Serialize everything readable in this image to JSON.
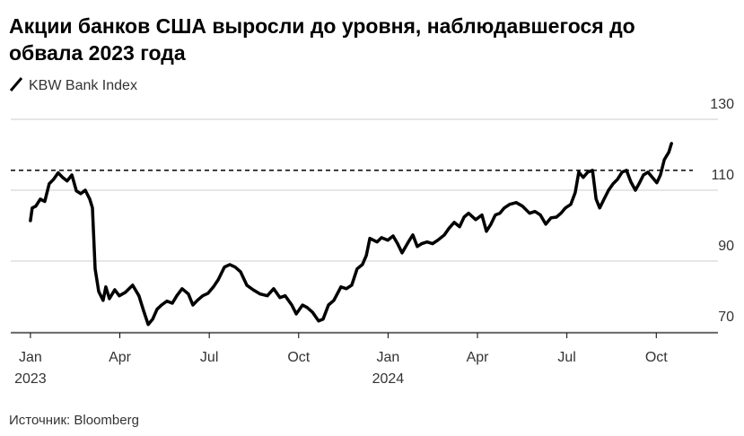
{
  "chart_data": {
    "type": "line",
    "title": "Акции банков США выросли до уровня, наблюдавшегося до",
    "title_line2": "обвала 2023 года",
    "source": "Источник: Bloomberg",
    "xlim": [
      -0.66,
      23.07
    ],
    "xticks": [
      {
        "value": 0,
        "label": "Jan",
        "sublabel": "2023"
      },
      {
        "value": 3,
        "label": "Apr"
      },
      {
        "value": 6,
        "label": "Jul"
      },
      {
        "value": 9,
        "label": "Oct"
      },
      {
        "value": 12,
        "label": "Jan",
        "sublabel": "2024"
      },
      {
        "value": 15,
        "label": "Apr"
      },
      {
        "value": 18,
        "label": "Jul"
      },
      {
        "value": 21,
        "label": "Oct"
      }
    ],
    "ylim": [
      70,
      130
    ],
    "yticks": [
      70,
      90,
      110,
      130
    ],
    "grid": true,
    "hline": 115.6,
    "series": [
      {
        "name": "KBW Bank Index",
        "color": "#000000",
        "x": [
          0,
          0.06,
          0.18,
          0.33,
          0.48,
          0.63,
          0.78,
          0.93,
          1.08,
          1.23,
          1.39,
          1.54,
          1.69,
          1.84,
          1.99,
          2.08,
          2.17,
          2.29,
          2.44,
          2.53,
          2.65,
          2.83,
          2.98,
          3.19,
          3.43,
          3.64,
          3.8,
          3.95,
          4.1,
          4.25,
          4.4,
          4.58,
          4.76,
          4.91,
          5.09,
          5.3,
          5.45,
          5.6,
          5.78,
          5.96,
          6.14,
          6.3,
          6.51,
          6.69,
          6.87,
          7.05,
          7.26,
          7.47,
          7.71,
          7.95,
          8.16,
          8.37,
          8.55,
          8.77,
          8.92,
          9.13,
          9.28,
          9.46,
          9.67,
          9.82,
          10.0,
          10.18,
          10.42,
          10.6,
          10.78,
          10.96,
          11.14,
          11.27,
          11.39,
          11.51,
          11.63,
          11.78,
          11.99,
          12.17,
          12.32,
          12.47,
          12.68,
          12.83,
          12.98,
          13.13,
          13.31,
          13.49,
          13.67,
          13.89,
          14.04,
          14.22,
          14.4,
          14.55,
          14.7,
          14.94,
          15.15,
          15.3,
          15.45,
          15.6,
          15.75,
          15.9,
          16.08,
          16.3,
          16.51,
          16.75,
          16.93,
          17.11,
          17.29,
          17.47,
          17.65,
          17.8,
          17.95,
          18.13,
          18.28,
          18.4,
          18.55,
          18.7,
          18.86,
          18.98,
          19.1,
          19.25,
          19.4,
          19.55,
          19.7,
          19.85,
          20.0,
          20.15,
          20.3,
          20.42,
          20.57,
          20.72,
          20.87,
          21.02,
          21.14,
          21.27,
          21.42,
          21.51
        ],
        "values": [
          101.4,
          105,
          105.5,
          107.5,
          106.8,
          111.8,
          113.1,
          114.9,
          113.6,
          112.6,
          114.3,
          109.8,
          109,
          110,
          107.5,
          105,
          87.8,
          81.4,
          78.9,
          82.7,
          79.4,
          81.9,
          80.2,
          81.2,
          83.2,
          80.2,
          75.9,
          72.1,
          73.6,
          76.4,
          77.6,
          78.7,
          78.1,
          80.2,
          82.2,
          80.7,
          77.6,
          78.9,
          80.2,
          80.9,
          82.7,
          84.7,
          88.3,
          89,
          88.3,
          87,
          83.2,
          81.9,
          80.7,
          80.2,
          82.2,
          79.7,
          80.2,
          77.6,
          75.1,
          77.6,
          76.9,
          75.6,
          73.1,
          73.6,
          77.6,
          78.9,
          82.7,
          82.2,
          83.2,
          87.8,
          89,
          91.6,
          96.4,
          95.9,
          95.4,
          96.6,
          95.9,
          97.1,
          94.9,
          92.3,
          95.4,
          97.4,
          94.1,
          94.9,
          95.4,
          94.9,
          95.9,
          97.4,
          99.2,
          100.9,
          99.7,
          102.4,
          103.5,
          101.7,
          103,
          98.4,
          100.4,
          103,
          103.5,
          105,
          106,
          106.5,
          105.5,
          103.5,
          104,
          103,
          100.4,
          102.2,
          102.4,
          103.5,
          105,
          106,
          109.3,
          115.1,
          113.6,
          115.1,
          115.6,
          107.5,
          105,
          107.5,
          110,
          111.8,
          113.1,
          115.1,
          115.6,
          112.3,
          110,
          111.8,
          114.3,
          115.1,
          113.6,
          112.1,
          114.3,
          118.6,
          120.7,
          123.2
        ]
      }
    ]
  }
}
